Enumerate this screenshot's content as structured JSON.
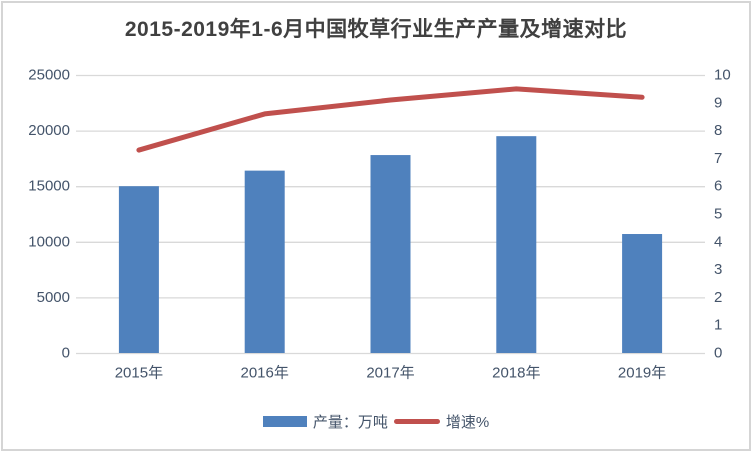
{
  "page": {
    "background": "#ffffff",
    "border_color": "#d5d5d5"
  },
  "chart": {
    "title": "2015-2019年1-6月中国牧草行业生产产量及增速对比",
    "title_color": "#404040",
    "axis_label_color": "#44546A",
    "gridline_color": "#D9D9D9",
    "plot_background": "#ffffff"
  },
  "legend": {
    "position": "bottom",
    "items": [
      {
        "label": "产量：万吨",
        "color": "#4F81BD",
        "shape": "rect"
      },
      {
        "label": "增速%",
        "color": "#C0504D",
        "shape": "line"
      }
    ]
  },
  "chart_data": {
    "type": "bar+line combo",
    "title": "2015-2019年1-6月中国牧草行业生产产量及增速对比",
    "categories": [
      "2015年",
      "2016年",
      "2017年",
      "2018年",
      "2019年"
    ],
    "series": [
      {
        "name": "产量：万吨",
        "type": "bar",
        "axis": "left",
        "color": "#4F81BD",
        "values": [
          15000,
          16400,
          17800,
          19500,
          10700
        ]
      },
      {
        "name": "增速%",
        "type": "line",
        "axis": "right",
        "color": "#C0504D",
        "values": [
          7.3,
          8.6,
          9.1,
          9.5,
          9.2
        ]
      }
    ],
    "left_axis": {
      "min": 0,
      "max": 25000,
      "tick_step": 5000,
      "ticks": [
        0,
        5000,
        10000,
        15000,
        20000,
        25000
      ]
    },
    "right_axis": {
      "min": 0,
      "max": 10,
      "tick_step": 1,
      "ticks": [
        0,
        1,
        2,
        3,
        4,
        5,
        6,
        7,
        8,
        9,
        10
      ]
    },
    "grid": "horizontal gridlines at every 5000 (left axis) / every 2 (right axis)",
    "legend_position": "bottom",
    "xlabel": "",
    "ylabel_left": "产量：万吨",
    "ylabel_right": "增速%"
  }
}
